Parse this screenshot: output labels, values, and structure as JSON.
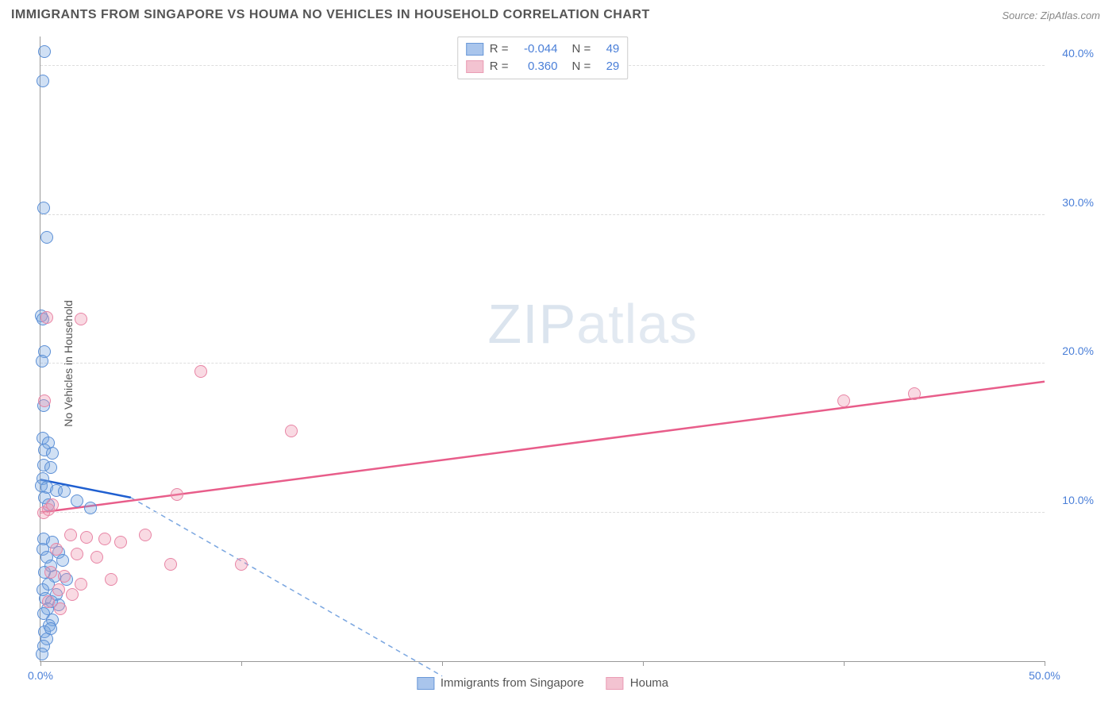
{
  "header": {
    "title": "IMMIGRANTS FROM SINGAPORE VS HOUMA NO VEHICLES IN HOUSEHOLD CORRELATION CHART",
    "source": "Source: ZipAtlas.com"
  },
  "ylabel": "No Vehicles in Household",
  "watermark": {
    "bold": "ZIP",
    "light": "atlas"
  },
  "axes": {
    "xlim": [
      0,
      50
    ],
    "ylim": [
      0,
      42
    ],
    "xticks": [
      0,
      10,
      20,
      30,
      40,
      50
    ],
    "xticklabels": [
      "0.0%",
      "",
      "",
      "",
      "",
      "50.0%"
    ],
    "ygrid": [
      10,
      20,
      30,
      40
    ],
    "yticklabels": [
      "10.0%",
      "20.0%",
      "30.0%",
      "40.0%"
    ],
    "grid_color": "#dddddd",
    "axis_color": "#999999",
    "tick_label_color": "#4a7fd8"
  },
  "series": [
    {
      "name": "Immigrants from Singapore",
      "fill": "rgba(120,165,224,0.35)",
      "stroke": "#5b8fd6",
      "swatch_fill": "#a9c5ec",
      "swatch_stroke": "#6a98d8",
      "marker_radius": 8,
      "R": "-0.044",
      "N": "49",
      "trend": {
        "x1": 0,
        "y1": 12.2,
        "x2": 4.5,
        "y2": 11.0,
        "solid_color": "#1f5fd0",
        "width": 2.5,
        "dash_x2": 20,
        "dash_y2": -1,
        "dash_color": "#7aa6e0"
      },
      "points": [
        [
          0.2,
          41.0
        ],
        [
          0.1,
          39.0
        ],
        [
          0.15,
          30.5
        ],
        [
          0.3,
          28.5
        ],
        [
          0.05,
          23.2
        ],
        [
          0.1,
          23.0
        ],
        [
          0.2,
          20.8
        ],
        [
          0.08,
          20.2
        ],
        [
          0.15,
          17.2
        ],
        [
          0.1,
          15.0
        ],
        [
          0.4,
          14.7
        ],
        [
          0.2,
          14.2
        ],
        [
          0.6,
          14.0
        ],
        [
          0.15,
          13.2
        ],
        [
          0.5,
          13.0
        ],
        [
          0.1,
          12.3
        ],
        [
          0.05,
          11.8
        ],
        [
          0.3,
          11.7
        ],
        [
          0.8,
          11.5
        ],
        [
          1.2,
          11.4
        ],
        [
          0.2,
          11.0
        ],
        [
          1.8,
          10.8
        ],
        [
          0.4,
          10.5
        ],
        [
          2.5,
          10.3
        ],
        [
          0.15,
          8.2
        ],
        [
          0.6,
          8.0
        ],
        [
          0.1,
          7.5
        ],
        [
          0.9,
          7.3
        ],
        [
          0.3,
          7.0
        ],
        [
          1.1,
          6.8
        ],
        [
          0.5,
          6.4
        ],
        [
          0.2,
          6.0
        ],
        [
          0.7,
          5.7
        ],
        [
          1.3,
          5.5
        ],
        [
          0.4,
          5.2
        ],
        [
          0.1,
          4.8
        ],
        [
          0.8,
          4.5
        ],
        [
          0.25,
          4.2
        ],
        [
          0.55,
          4.0
        ],
        [
          0.35,
          3.5
        ],
        [
          0.15,
          3.2
        ],
        [
          0.6,
          2.8
        ],
        [
          0.45,
          2.4
        ],
        [
          0.2,
          2.0
        ],
        [
          0.3,
          1.5
        ],
        [
          0.15,
          1.0
        ],
        [
          0.08,
          0.5
        ],
        [
          0.5,
          2.2
        ],
        [
          0.9,
          3.8
        ]
      ]
    },
    {
      "name": "Houma",
      "fill": "rgba(238,150,175,0.35)",
      "stroke": "#e885a5",
      "swatch_fill": "#f3c3d1",
      "swatch_stroke": "#ea9db5",
      "marker_radius": 8,
      "R": "0.360",
      "N": "29",
      "trend": {
        "x1": 0,
        "y1": 10.0,
        "x2": 50,
        "y2": 18.8,
        "solid_color": "#e85d8a",
        "width": 2.5
      },
      "points": [
        [
          0.3,
          23.1
        ],
        [
          2.0,
          23.0
        ],
        [
          0.2,
          17.5
        ],
        [
          8.0,
          19.5
        ],
        [
          12.5,
          15.5
        ],
        [
          6.8,
          11.2
        ],
        [
          0.4,
          10.2
        ],
        [
          0.15,
          10.0
        ],
        [
          40.0,
          17.5
        ],
        [
          43.5,
          18.0
        ],
        [
          1.5,
          8.5
        ],
        [
          2.3,
          8.3
        ],
        [
          3.2,
          8.2
        ],
        [
          4.0,
          8.0
        ],
        [
          5.2,
          8.5
        ],
        [
          0.8,
          7.5
        ],
        [
          1.8,
          7.2
        ],
        [
          2.8,
          7.0
        ],
        [
          6.5,
          6.5
        ],
        [
          10.0,
          6.5
        ],
        [
          0.5,
          6.0
        ],
        [
          1.2,
          5.7
        ],
        [
          3.5,
          5.5
        ],
        [
          2.0,
          5.2
        ],
        [
          0.9,
          4.8
        ],
        [
          1.6,
          4.5
        ],
        [
          0.4,
          4.0
        ],
        [
          1.0,
          3.5
        ],
        [
          0.6,
          10.5
        ]
      ]
    }
  ],
  "legend_top": {
    "R_label": "R =",
    "N_label": "N ="
  },
  "bottom_legend": {
    "items": [
      "Immigrants from Singapore",
      "Houma"
    ]
  }
}
